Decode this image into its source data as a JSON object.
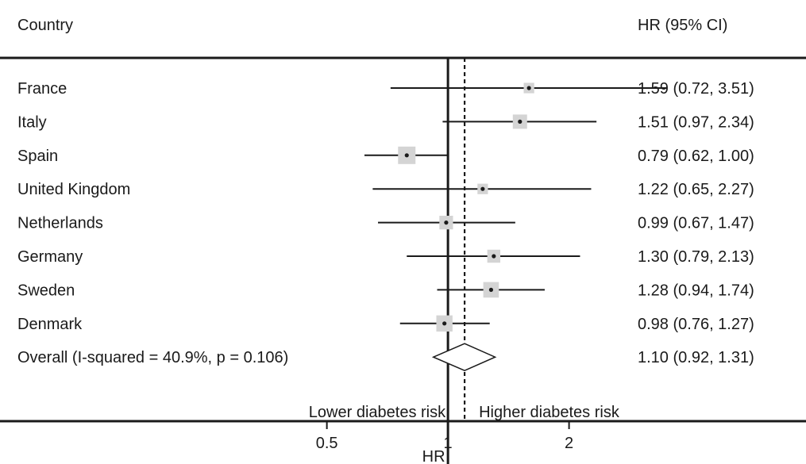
{
  "chart_data": {
    "type": "forest",
    "header": {
      "label_col": "Country",
      "value_col": "HR (95% CI)"
    },
    "scale": "log",
    "xlim": [
      0.345,
      4.3
    ],
    "x_ticks": [
      {
        "value": 0.5,
        "label": "0.5"
      },
      {
        "value": 1,
        "label": "1"
      },
      {
        "value": 2,
        "label": "2"
      }
    ],
    "xlabel": "HR",
    "reference_line": 1,
    "overall_line": 1.1,
    "direction_labels": {
      "left": "Lower diabetes risk",
      "right": "Higher diabetes risk"
    },
    "rows": [
      {
        "label": "France",
        "hr": 1.59,
        "lo": 0.72,
        "hi": 3.51,
        "text": "1.59 (0.72, 3.51)",
        "weight": 0.45
      },
      {
        "label": "Italy",
        "hr": 1.51,
        "lo": 0.97,
        "hi": 2.34,
        "text": "1.51 (0.97, 2.34)",
        "weight": 0.75
      },
      {
        "label": "Spain",
        "hr": 0.79,
        "lo": 0.62,
        "hi": 1.0,
        "text": "0.79 (0.62, 1.00)",
        "weight": 1.0
      },
      {
        "label": "United Kingdom",
        "hr": 1.22,
        "lo": 0.65,
        "hi": 2.27,
        "text": "1.22 (0.65, 2.27)",
        "weight": 0.45
      },
      {
        "label": "Netherlands",
        "hr": 0.99,
        "lo": 0.67,
        "hi": 1.47,
        "text": "0.99 (0.67, 1.47)",
        "weight": 0.7
      },
      {
        "label": "Germany",
        "hr": 1.3,
        "lo": 0.79,
        "hi": 2.13,
        "text": "1.30 (0.79, 2.13)",
        "weight": 0.65
      },
      {
        "label": "Sweden",
        "hr": 1.28,
        "lo": 0.94,
        "hi": 1.74,
        "text": "1.28 (0.94, 1.74)",
        "weight": 0.85
      },
      {
        "label": "Denmark",
        "hr": 0.98,
        "lo": 0.76,
        "hi": 1.27,
        "text": "0.98 (0.76, 1.27)",
        "weight": 0.9
      }
    ],
    "overall": {
      "label": "Overall  (I-squared = 40.9%, p = 0.106)",
      "hr": 1.1,
      "lo": 0.92,
      "hi": 1.31,
      "text": "1.10 (0.92, 1.31)"
    },
    "colors": {
      "ink": "#1a1a1a",
      "weight_box": "#d4d4d4"
    }
  }
}
